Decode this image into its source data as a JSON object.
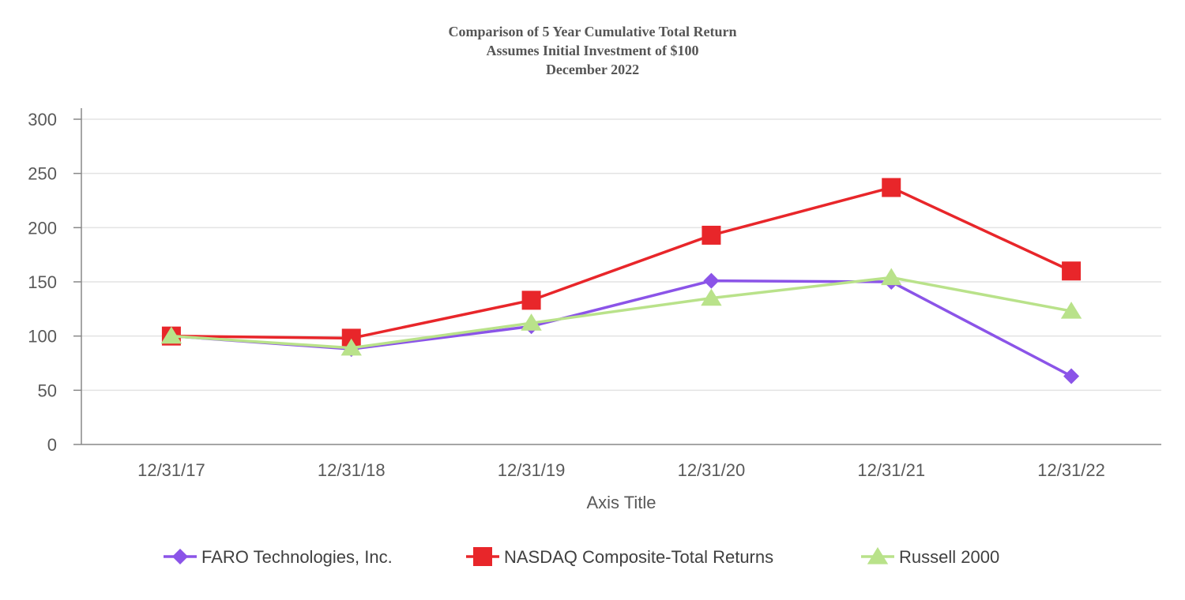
{
  "chart_data": {
    "type": "line",
    "title": [
      "Comparison of 5 Year Cumulative Total Return",
      "Assumes Initial Investment of $100",
      "December 2022"
    ],
    "xlabel": "Axis Title",
    "ylabel": "",
    "categories": [
      "12/31/17",
      "12/31/18",
      "12/31/19",
      "12/31/20",
      "12/31/21",
      "12/31/22"
    ],
    "ylim": [
      0,
      300
    ],
    "yticks": [
      0,
      50,
      100,
      150,
      200,
      250,
      300
    ],
    "grid": true,
    "legend_position": "bottom",
    "series": [
      {
        "name": "FARO Technologies, Inc.",
        "color": "#8B54E8",
        "marker": "diamond",
        "values": [
          100,
          88,
          109,
          151,
          150,
          63
        ]
      },
      {
        "name": "NASDAQ Composite-Total Returns",
        "color": "#E8262A",
        "marker": "square",
        "values": [
          100,
          98,
          133,
          193,
          237,
          160
        ]
      },
      {
        "name": "Russell 2000",
        "color": "#B9E28A",
        "marker": "triangle",
        "values": [
          100,
          89,
          112,
          135,
          154,
          123
        ]
      }
    ]
  }
}
